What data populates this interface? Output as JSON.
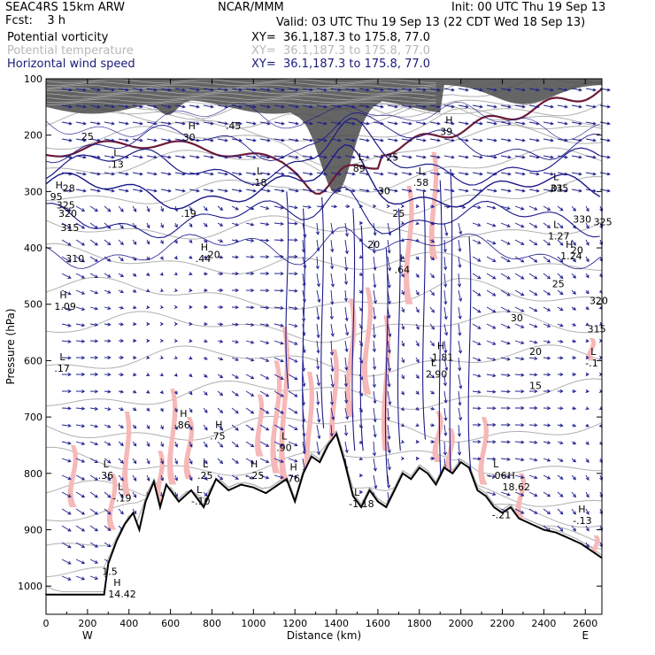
{
  "header": {
    "model": "SEAC4RS 15km ARW",
    "forecast": "Fcst:    3 h",
    "center": "NCAR/MMM",
    "init": "Init: 00 UTC Thu 19 Sep 13",
    "valid": "Valid: 03 UTC Thu 19 Sep 13 (22 CDT Wed 18 Sep 13)",
    "fields": [
      {
        "name": "Potential vorticity",
        "xy": "XY=  36.1,187.3 to 175.8, 77.0"
      },
      {
        "name": "Potential temperature",
        "xy": "XY=  36.1,187.3 to 175.8, 77.0"
      },
      {
        "name": "Horizontal wind speed",
        "xy": "XY=  36.1,187.3 to 175.8, 77.0"
      }
    ]
  },
  "colors": {
    "pv_shade": "#4a4a4a",
    "theta": "#b0b0b0",
    "wind_contour": "#1a1a8a",
    "vectors": "#1f1f8f",
    "pink_shade": "#f6b8b8",
    "dynamic_tropopause": "#6b1a3a",
    "terrain": "#000000"
  },
  "chart_data": {
    "type": "cross-section",
    "xlabel": "Distance (km)",
    "ylabel": "Pressure (hPa)",
    "xlim": [
      0,
      2680
    ],
    "ylim": [
      1050,
      100
    ],
    "x_ticks": [
      0,
      200,
      400,
      600,
      800,
      1000,
      1200,
      1400,
      1600,
      1800,
      2000,
      2200,
      2400,
      2600
    ],
    "y_ticks": [
      100,
      200,
      300,
      400,
      500,
      600,
      700,
      800,
      900,
      1000
    ],
    "x_end_labels": {
      "left": "W",
      "right": "E"
    },
    "terrain": {
      "x": [
        0,
        150,
        280,
        300,
        340,
        380,
        420,
        450,
        480,
        520,
        550,
        580,
        640,
        700,
        760,
        820,
        880,
        940,
        1000,
        1060,
        1120,
        1160,
        1200,
        1240,
        1280,
        1320,
        1360,
        1400,
        1440,
        1480,
        1520,
        1560,
        1600,
        1640,
        1680,
        1720,
        1760,
        1800,
        1840,
        1880,
        1920,
        1960,
        2000,
        2040,
        2080,
        2120,
        2160,
        2200,
        2240,
        2280,
        2340,
        2400,
        2460,
        2520,
        2580,
        2640,
        2680
      ],
      "p": [
        1015,
        1015,
        1015,
        960,
        920,
        890,
        870,
        900,
        850,
        815,
        860,
        820,
        850,
        830,
        860,
        810,
        830,
        820,
        825,
        835,
        820,
        810,
        850,
        800,
        770,
        780,
        750,
        730,
        780,
        840,
        860,
        830,
        850,
        860,
        830,
        800,
        810,
        790,
        800,
        820,
        790,
        800,
        780,
        790,
        830,
        840,
        860,
        870,
        860,
        880,
        890,
        900,
        905,
        915,
        925,
        940,
        950
      ]
    },
    "theta_labels": [
      "325",
      "320",
      "315",
      "310",
      "335",
      "330",
      "325",
      "320",
      "315"
    ],
    "wind_speed_labels": [
      "25",
      "28",
      "20",
      "15",
      "30",
      "25",
      "20",
      "30",
      "25",
      "20",
      "20",
      "25"
    ],
    "extrema_labels": [
      {
        "kind": "H",
        "value": "95"
      },
      {
        "kind": "L",
        "value": ".13"
      },
      {
        "kind": "H",
        "value": "30"
      },
      {
        "kind": ".45",
        "value": ""
      },
      {
        "kind": "L",
        "value": ".18"
      },
      {
        "kind": "",
        "value": ".19"
      },
      {
        "kind": "H",
        "value": ".44"
      },
      {
        "kind": "L",
        "value": "89"
      },
      {
        "kind": "L",
        "value": ".58"
      },
      {
        "kind": "H",
        "value": "39"
      },
      {
        "kind": "L",
        "value": ".01"
      },
      {
        "kind": "L",
        "value": "1.27"
      },
      {
        "kind": "H",
        "value": "1.24"
      },
      {
        "kind": "L",
        "value": ".64"
      },
      {
        "kind": "H",
        "value": "1.09"
      },
      {
        "kind": "L",
        "value": ".17"
      },
      {
        "kind": "H",
        "value": ".86"
      },
      {
        "kind": "H",
        "value": ".75"
      },
      {
        "kind": "H",
        "value": "1.81"
      },
      {
        "kind": "L",
        "value": "2.90"
      },
      {
        "kind": "L",
        "value": "-.1"
      },
      {
        "kind": "L",
        "value": ".90"
      },
      {
        "kind": "L",
        "value": ".36"
      },
      {
        "kind": "L",
        "value": "-.19"
      },
      {
        "kind": "L",
        "value": ".25"
      },
      {
        "kind": "H",
        "value": "-.25"
      },
      {
        "kind": "H",
        "value": ".76"
      },
      {
        "kind": "L",
        "value": "-.10"
      },
      {
        "kind": "L",
        "value": "-1.18"
      },
      {
        "kind": "L",
        "value": "-.06"
      },
      {
        "kind": "H",
        "value": "18.62"
      },
      {
        "kind": "",
        "value": "-.21"
      },
      {
        "kind": "H",
        "value": "-.13"
      },
      {
        "kind": "",
        "value": "1.5"
      },
      {
        "kind": "H",
        "value": "14.42"
      }
    ]
  }
}
